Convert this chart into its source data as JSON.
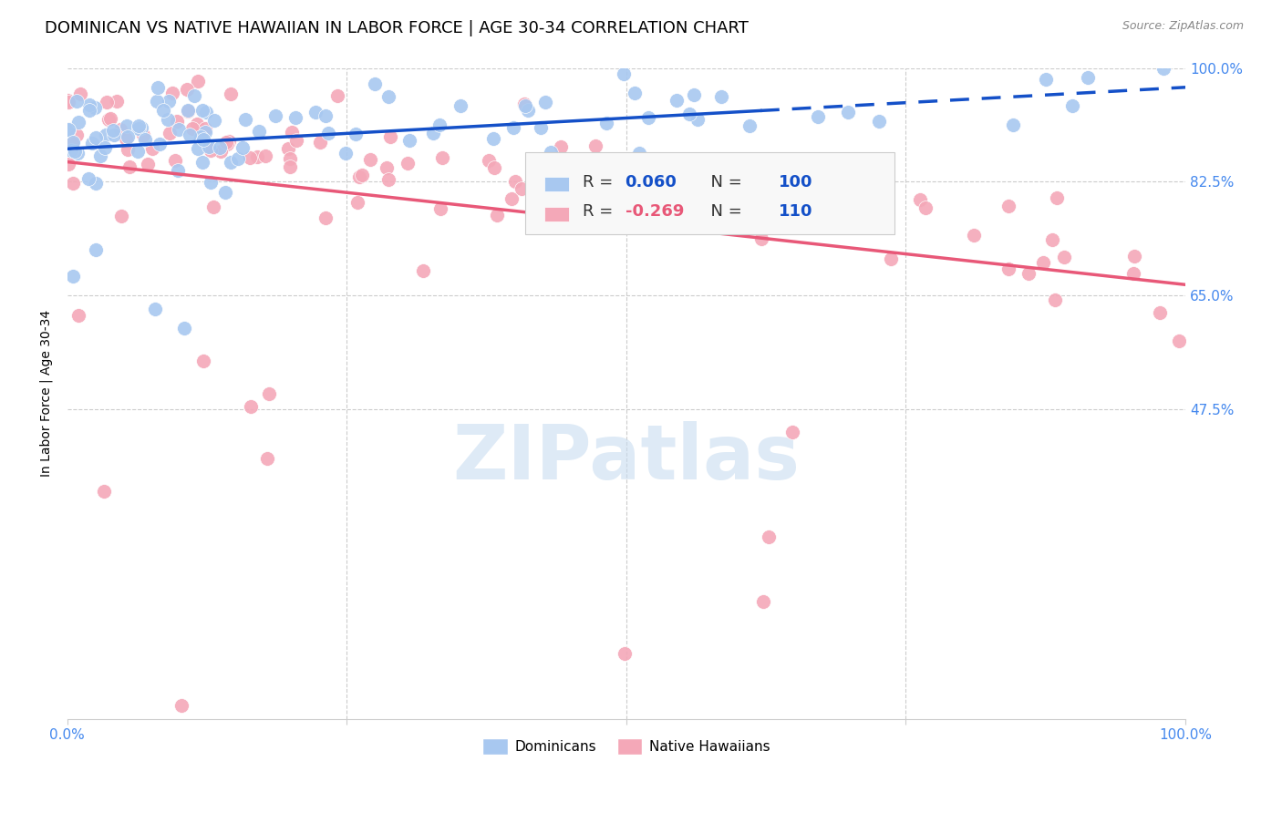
{
  "title": "DOMINICAN VS NATIVE HAWAIIAN IN LABOR FORCE | AGE 30-34 CORRELATION CHART",
  "source": "Source: ZipAtlas.com",
  "ylabel": "In Labor Force | Age 30-34",
  "xlim": [
    0.0,
    1.0
  ],
  "ylim": [
    0.0,
    1.0
  ],
  "legend_blue_label": "Dominicans",
  "legend_pink_label": "Native Hawaiians",
  "R_blue": 0.06,
  "N_blue": 100,
  "R_pink": -0.269,
  "N_pink": 110,
  "blue_color": "#A8C8F0",
  "pink_color": "#F4A8B8",
  "blue_line_color": "#1450C8",
  "pink_line_color": "#E85878",
  "watermark_color": "#C8DCF0",
  "title_fontsize": 13,
  "source_fontsize": 9,
  "tick_label_color": "#4488EE",
  "grid_color": "#CCCCCC",
  "legend_bg": "#F8F8F8",
  "legend_border": "#CCCCCC"
}
